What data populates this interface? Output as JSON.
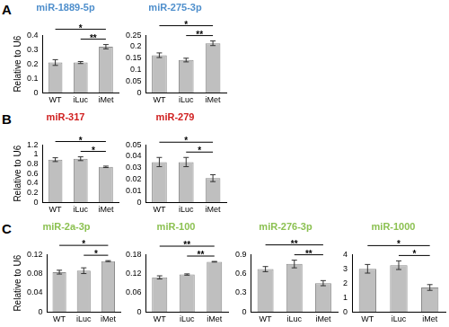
{
  "chart_data": [
    {
      "type": "bar",
      "panel": "A",
      "title": "miR-1889-5p",
      "y_label": "Relative to U6",
      "categories": [
        "WT",
        "iLuc",
        "iMet"
      ],
      "values": [
        0.21,
        0.21,
        0.32
      ],
      "errors": [
        0.02,
        0.007,
        0.015
      ],
      "color": "#bfbfbf",
      "ylim": [
        0,
        0.4
      ],
      "yticks": [
        0,
        0.1,
        0.2,
        0.3,
        0.4
      ],
      "grid": false,
      "significance": [
        {
          "pair": [
            "WT",
            "iMet"
          ],
          "label": "*"
        },
        {
          "pair": [
            "iLuc",
            "iMet"
          ],
          "label": "**"
        }
      ]
    },
    {
      "type": "bar",
      "title": "miR-275-3p",
      "categories": [
        "WT",
        "iLuc",
        "iMet"
      ],
      "values": [
        0.163,
        0.142,
        0.215
      ],
      "errors": [
        0.01,
        0.008,
        0.01
      ],
      "color": "#bfbfbf",
      "ylim": [
        0,
        0.25
      ],
      "yticks": [
        0,
        0.05,
        0.1,
        0.15,
        0.2,
        0.25
      ],
      "grid": false,
      "significance": [
        {
          "pair": [
            "WT",
            "iMet"
          ],
          "label": "*"
        },
        {
          "pair": [
            "iLuc",
            "iMet"
          ],
          "label": "**"
        }
      ]
    },
    {
      "type": "bar",
      "panel": "B",
      "title": "miR-317",
      "y_label": "Relative to U6",
      "categories": [
        "WT",
        "iLuc",
        "iMet"
      ],
      "values": [
        0.89,
        0.91,
        0.74
      ],
      "errors": [
        0.04,
        0.04,
        0.015
      ],
      "color": "#bfbfbf",
      "ylim": [
        0,
        1.2
      ],
      "yticks": [
        0,
        0.2,
        0.4,
        0.6,
        0.8,
        1,
        1.2
      ],
      "grid": false,
      "significance": [
        {
          "pair": [
            "WT",
            "iMet"
          ],
          "label": "*"
        },
        {
          "pair": [
            "iLuc",
            "iMet"
          ],
          "label": "*"
        }
      ]
    },
    {
      "type": "bar",
      "title": "miR-279",
      "categories": [
        "WT",
        "iLuc",
        "iMet"
      ],
      "values": [
        0.035,
        0.035,
        0.021
      ],
      "errors": [
        0.004,
        0.004,
        0.003
      ],
      "color": "#bfbfbf",
      "ylim": [
        0,
        0.05
      ],
      "yticks": [
        0,
        0.01,
        0.02,
        0.03,
        0.04,
        0.05
      ],
      "grid": false,
      "significance": [
        {
          "pair": [
            "WT",
            "iMet"
          ],
          "label": "*"
        },
        {
          "pair": [
            "iLuc",
            "iMet"
          ],
          "label": "*"
        }
      ]
    },
    {
      "type": "bar",
      "panel": "C",
      "title": "miR-2a-3p",
      "y_label": "Relative to U6",
      "categories": [
        "WT",
        "iLuc",
        "iMet"
      ],
      "values": [
        0.083,
        0.086,
        0.106
      ],
      "errors": [
        0.004,
        0.006,
        0.001
      ],
      "color": "#bfbfbf",
      "ylim": [
        0,
        0.12
      ],
      "yticks": [
        0,
        0.04,
        0.08,
        0.12
      ],
      "grid": false,
      "significance": [
        {
          "pair": [
            "WT",
            "iMet"
          ],
          "label": "*"
        },
        {
          "pair": [
            "iLuc",
            "iMet"
          ],
          "label": "*"
        }
      ]
    },
    {
      "type": "bar",
      "title": "miR-100",
      "categories": [
        "WT",
        "iLuc",
        "iMet"
      ],
      "values": [
        0.108,
        0.117,
        0.157
      ],
      "errors": [
        0.005,
        0.002,
        0.001
      ],
      "color": "#bfbfbf",
      "ylim": [
        0,
        0.18
      ],
      "yticks": [
        0,
        0.06,
        0.12,
        0.18
      ],
      "grid": false,
      "significance": [
        {
          "pair": [
            "WT",
            "iMet"
          ],
          "label": "**"
        },
        {
          "pair": [
            "iLuc",
            "iMet"
          ],
          "label": "**"
        }
      ]
    },
    {
      "type": "bar",
      "title": "miR-276-3p",
      "categories": [
        "WT",
        "iLuc",
        "iMet"
      ],
      "values": [
        0.67,
        0.75,
        0.45
      ],
      "errors": [
        0.04,
        0.06,
        0.04
      ],
      "color": "#bfbfbf",
      "ylim": [
        0,
        0.9
      ],
      "yticks": [
        0,
        0.3,
        0.6,
        0.9
      ],
      "grid": false,
      "significance": [
        {
          "pair": [
            "WT",
            "iMet"
          ],
          "label": "**"
        },
        {
          "pair": [
            "iLuc",
            "iMet"
          ],
          "label": "**"
        }
      ]
    },
    {
      "type": "bar",
      "title": "miR-1000",
      "categories": [
        "WT",
        "iLuc",
        "iMet"
      ],
      "values": [
        3.0,
        3.25,
        1.7
      ],
      "errors": [
        0.3,
        0.3,
        0.2
      ],
      "color": "#bfbfbf",
      "ylim": [
        0,
        4
      ],
      "yticks": [
        0,
        1,
        2,
        3,
        4
      ],
      "grid": false,
      "significance": [
        {
          "pair": [
            "WT",
            "iMet"
          ],
          "label": "*"
        },
        {
          "pair": [
            "iLuc",
            "iMet"
          ],
          "label": "*"
        }
      ]
    }
  ]
}
